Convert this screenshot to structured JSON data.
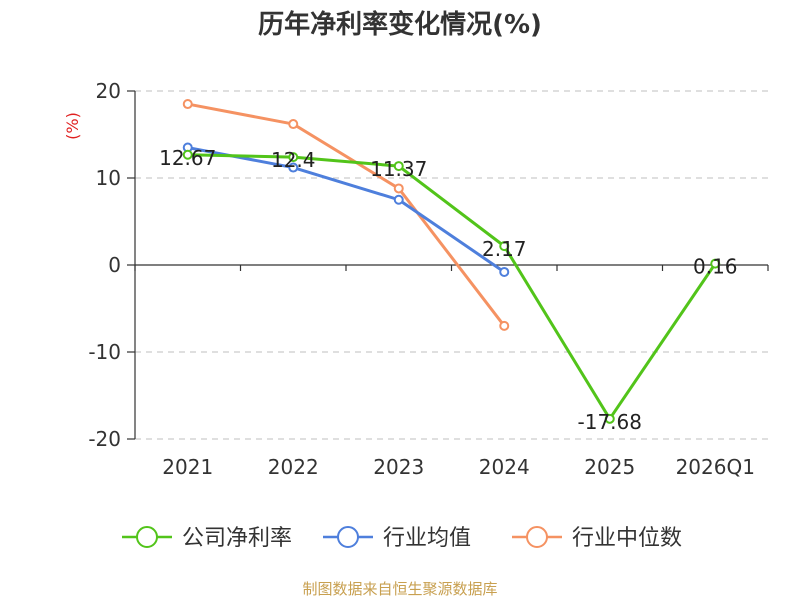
{
  "chart_data": {
    "type": "line",
    "title": "历年净利率变化情况(%)",
    "ylabel": "(%)",
    "xlabel": "",
    "categories": [
      "2021",
      "2022",
      "2023",
      "2024",
      "2025",
      "2026Q1"
    ],
    "ylim": [
      -20,
      20
    ],
    "yticks": [
      20,
      10,
      0,
      -10,
      -20
    ],
    "grid": true,
    "legend_position": "bottom",
    "series": [
      {
        "name": "公司净利率",
        "color": "#52c41a",
        "values": [
          12.67,
          12.4,
          11.37,
          2.17,
          -17.68,
          0.16
        ],
        "labels": [
          "12.67",
          "12.4",
          "11.37",
          "2.17",
          "-17.68",
          "0.16"
        ]
      },
      {
        "name": "行业均值",
        "color": "#4e7fdc",
        "values": [
          13.5,
          11.2,
          7.5,
          -0.8,
          null,
          null
        ]
      },
      {
        "name": "行业中位数",
        "color": "#f59262",
        "values": [
          18.5,
          16.2,
          8.8,
          -7.0,
          null,
          null
        ]
      }
    ]
  },
  "source": {
    "text": "制图数据来自恒生聚源数据库",
    "color": "#c8a050"
  }
}
